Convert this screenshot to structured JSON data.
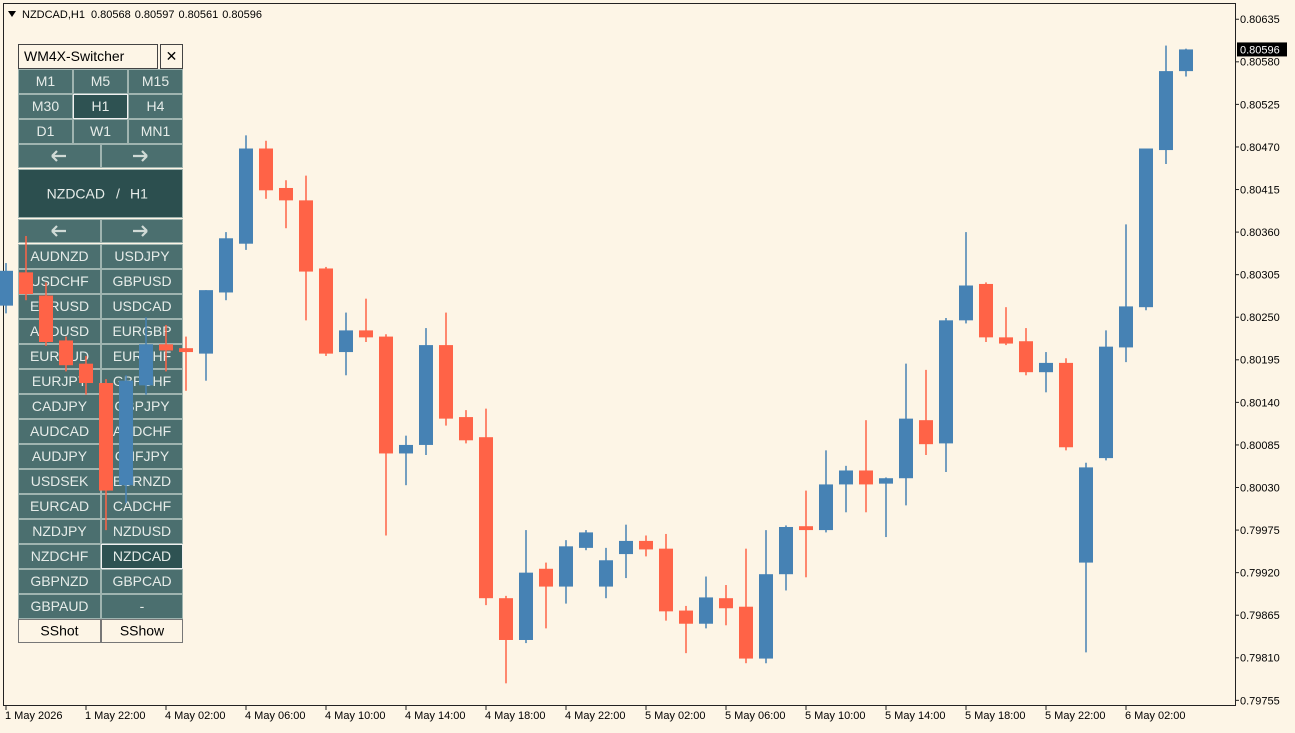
{
  "chart_data": {
    "type": "candlestick",
    "title": "NZDCAD,H1",
    "categories": [
      "1 May 2026",
      null,
      null,
      null,
      "1 May 22:00",
      null,
      null,
      null,
      "4 May 02:00",
      null,
      null,
      null,
      "4 May 06:00",
      null,
      null,
      null,
      "4 May 10:00",
      null,
      null,
      null,
      "4 May 14:00",
      null,
      null,
      null,
      "4 May 18:00",
      null,
      null,
      null,
      "4 May 22:00",
      null,
      null,
      null,
      "5 May 02:00",
      null,
      null,
      null,
      "5 May 06:00",
      null,
      null,
      null,
      "5 May 10:00",
      null,
      null,
      null,
      "5 May 14:00",
      null,
      null,
      null,
      "5 May 18:00",
      null,
      null,
      null,
      "5 May 22:00",
      null,
      null,
      null,
      "6 May 02:00",
      null,
      null,
      null
    ],
    "open": [
      0.80265,
      0.80308,
      0.80278,
      0.8022,
      0.8019,
      0.80165,
      0.80033,
      0.80162,
      0.80215,
      0.8021,
      0.80203,
      0.80282,
      0.80345,
      0.80468,
      0.80417,
      0.80401,
      0.80313,
      0.80205,
      0.80233,
      0.80225,
      0.80074,
      0.80085,
      0.80214,
      0.80121,
      0.80095,
      0.79887,
      0.79833,
      0.79925,
      0.79902,
      0.79952,
      0.79902,
      0.79944,
      0.79961,
      0.79951,
      0.79871,
      0.79854,
      0.79887,
      0.79876,
      0.79809,
      0.79918,
      0.7998,
      0.79975,
      0.80034,
      0.80052,
      0.80035,
      0.80042,
      0.80117,
      0.80087,
      0.80246,
      0.80293,
      0.80224,
      0.80219,
      0.80179,
      0.80191,
      0.79933,
      0.80068,
      0.80211,
      0.80263,
      0.80466,
      0.80568
    ],
    "high": [
      0.8032,
      0.80355,
      0.80295,
      0.80225,
      0.802,
      0.8017,
      0.80175,
      0.8025,
      0.8024,
      0.80225,
      0.80285,
      0.8036,
      0.80485,
      0.80478,
      0.80427,
      0.80433,
      0.80315,
      0.80256,
      0.80274,
      0.80228,
      0.80097,
      0.80236,
      0.80256,
      0.8013,
      0.80132,
      0.7989,
      0.79975,
      0.79933,
      0.79962,
      0.79975,
      0.79952,
      0.79982,
      0.79968,
      0.7997,
      0.79877,
      0.79915,
      0.79904,
      0.79951,
      0.79975,
      0.79981,
      0.80026,
      0.80078,
      0.80058,
      0.80117,
      0.80043,
      0.8019,
      0.80182,
      0.80249,
      0.8036,
      0.80295,
      0.80263,
      0.80236,
      0.80205,
      0.80197,
      0.80062,
      0.80233,
      0.8037,
      0.80468,
      0.80601,
      0.80597
    ],
    "low": [
      0.80255,
      0.80272,
      0.80213,
      0.8018,
      0.8015,
      0.79975,
      0.8001,
      0.8015,
      0.8018,
      0.80155,
      0.80168,
      0.80272,
      0.80337,
      0.80403,
      0.80365,
      0.80246,
      0.802,
      0.80175,
      0.80218,
      0.79968,
      0.80033,
      0.80072,
      0.8011,
      0.80087,
      0.79878,
      0.79777,
      0.79829,
      0.79848,
      0.7988,
      0.79949,
      0.79887,
      0.79913,
      0.79941,
      0.79858,
      0.79816,
      0.79848,
      0.79852,
      0.79803,
      0.79803,
      0.79897,
      0.79914,
      0.79972,
      0.79998,
      0.79998,
      0.79966,
      0.80007,
      0.80072,
      0.8005,
      0.80242,
      0.80218,
      0.80214,
      0.80175,
      0.80153,
      0.80078,
      0.79817,
      0.80065,
      0.80192,
      0.80259,
      0.80448,
      0.80561
    ],
    "close": [
      0.8031,
      0.8028,
      0.80218,
      0.80188,
      0.80165,
      0.80026,
      0.80168,
      0.80215,
      0.80207,
      0.80205,
      0.80285,
      0.80352,
      0.80468,
      0.80414,
      0.80401,
      0.80309,
      0.80203,
      0.80233,
      0.80224,
      0.80074,
      0.80085,
      0.80214,
      0.80119,
      0.80091,
      0.79887,
      0.79833,
      0.7992,
      0.79902,
      0.79954,
      0.79972,
      0.79936,
      0.79961,
      0.7995,
      0.7987,
      0.79854,
      0.79888,
      0.79874,
      0.79809,
      0.79918,
      0.79979,
      0.79975,
      0.80034,
      0.80052,
      0.80034,
      0.80042,
      0.80119,
      0.80086,
      0.80246,
      0.80291,
      0.80224,
      0.80216,
      0.80179,
      0.80191,
      0.80082,
      0.80056,
      0.80212,
      0.80264,
      0.80468,
      0.80568,
      0.80596
    ],
    "up_color": "#4682b4",
    "down_color": "#ff6347",
    "ylim": [
      0.79749,
      0.80656
    ],
    "yticks": [
      0.80635,
      {
        "value": 0.8058,
        "label": "0.80580"
      },
      0.80525,
      {
        "value": 0.8047,
        "label": "0.80470"
      },
      0.80415,
      {
        "value": 0.8036,
        "label": "0.80360"
      },
      0.80305,
      {
        "value": 0.8025,
        "label": "0.80250"
      },
      0.80195,
      {
        "value": 0.8014,
        "label": "0.80140"
      },
      0.80085,
      {
        "value": 0.8003,
        "label": "0.80030"
      },
      0.79975,
      {
        "value": 0.7992,
        "label": "0.79920"
      },
      0.79865,
      {
        "value": 0.7981,
        "label": "0.79810"
      },
      0.79755
    ],
    "grid": false
  },
  "panel": {
    "title": "WM4X-Switcher",
    "close": "✕",
    "timeframes": [
      "M1",
      "M5",
      "M15",
      "M30",
      "H1",
      "H4",
      "D1",
      "W1",
      "MN1"
    ],
    "separator": "/",
    "pairs": [
      "AUDNZD",
      "USDJPY",
      "USDCHF",
      "GBPUSD",
      "EURUSD",
      "USDCAD",
      "AUDUSD",
      "EURGBP",
      "EURAUD",
      "EURCHF",
      "EURJPY",
      "GBPCHF",
      "CADJPY",
      "GBPJPY",
      "AUDCAD",
      "AUDCHF",
      "AUDJPY",
      "CHFJPY",
      "USDSEK",
      "EURNZD",
      "EURCAD",
      "CADCHF",
      "NZDJPY",
      "NZDUSD",
      "NZDCHF",
      "NZDCAD",
      "GBPNZD",
      "GBPCAD",
      "GBPAUD",
      "-"
    ],
    "buttons": [
      "SShot",
      "SShow"
    ]
  }
}
